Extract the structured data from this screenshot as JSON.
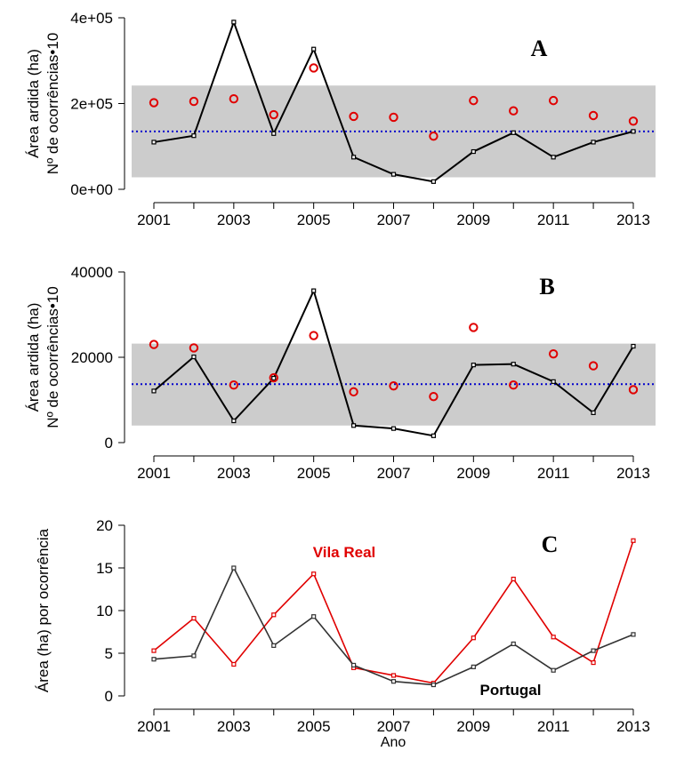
{
  "chart_data": [
    {
      "panel": "A",
      "type": "line",
      "ylabel_line1": "Área ardida (ha)",
      "ylabel_line2": "Nº de ocorrências•10",
      "x": [
        2001,
        2002,
        2003,
        2004,
        2005,
        2006,
        2007,
        2008,
        2009,
        2010,
        2011,
        2012,
        2013
      ],
      "x_tick_labels": [
        "2001",
        "2003",
        "2005",
        "2007",
        "2009",
        "2011",
        "2013"
      ],
      "y_tick_labels": [
        "0e+00",
        "2e+05",
        "4e+05"
      ],
      "y_ticks": [
        0,
        200000,
        400000
      ],
      "ylim": [
        0,
        400000
      ],
      "band": [
        28000,
        242000
      ],
      "reference_line": 135000,
      "series": [
        {
          "style": "line",
          "color": "#000000",
          "values": [
            110000,
            125000,
            390000,
            130000,
            327000,
            75000,
            35000,
            18000,
            88000,
            132000,
            75000,
            110000,
            135000
          ]
        },
        {
          "style": "circles",
          "color": "#e00000",
          "values": [
            202000,
            205000,
            211000,
            174000,
            283000,
            170000,
            168000,
            124000,
            207000,
            183000,
            207000,
            172000,
            159000
          ]
        }
      ]
    },
    {
      "panel": "B",
      "type": "line",
      "ylabel_line1": "Área ardida (ha)",
      "ylabel_line2": "Nº de ocorrências•10",
      "x": [
        2001,
        2002,
        2003,
        2004,
        2005,
        2006,
        2007,
        2008,
        2009,
        2010,
        2011,
        2012,
        2013
      ],
      "x_tick_labels": [
        "2001",
        "2003",
        "2005",
        "2007",
        "2009",
        "2011",
        "2013"
      ],
      "y_tick_labels": [
        "0",
        "20000",
        "40000"
      ],
      "y_ticks": [
        0,
        20000,
        40000
      ],
      "ylim": [
        0,
        40000
      ],
      "band": [
        4000,
        23200
      ],
      "reference_line": 13700,
      "series": [
        {
          "style": "line",
          "color": "#000000",
          "values": [
            12100,
            20100,
            5100,
            15100,
            35600,
            4000,
            3300,
            1600,
            18200,
            18400,
            14300,
            7000,
            22600
          ]
        },
        {
          "style": "circles",
          "color": "#e00000",
          "values": [
            23000,
            22200,
            13500,
            15200,
            25100,
            11900,
            13300,
            10800,
            27000,
            13500,
            20800,
            18000,
            12400
          ]
        }
      ]
    },
    {
      "panel": "C",
      "type": "line",
      "ylabel": "Área (ha) por ocorrência",
      "xlabel": "Ano",
      "x": [
        2001,
        2002,
        2003,
        2004,
        2005,
        2006,
        2007,
        2008,
        2009,
        2010,
        2011,
        2012,
        2013
      ],
      "x_tick_labels": [
        "2001",
        "2003",
        "2005",
        "2007",
        "2009",
        "2011",
        "2013"
      ],
      "y_tick_labels": [
        "0",
        "5",
        "10",
        "15",
        "20"
      ],
      "y_ticks": [
        0,
        5,
        10,
        15,
        20
      ],
      "ylim": [
        0,
        20
      ],
      "series": [
        {
          "name": "Vila Real",
          "color": "#e00000",
          "values": [
            5.3,
            9.1,
            3.7,
            9.5,
            14.3,
            3.3,
            2.4,
            1.5,
            6.8,
            13.7,
            6.9,
            3.9,
            18.2
          ]
        },
        {
          "name": "Portugal",
          "color": "#333333",
          "values": [
            4.3,
            4.7,
            15.0,
            5.9,
            9.3,
            3.6,
            1.7,
            1.3,
            3.4,
            6.1,
            3.0,
            5.3,
            7.2
          ]
        }
      ]
    }
  ]
}
